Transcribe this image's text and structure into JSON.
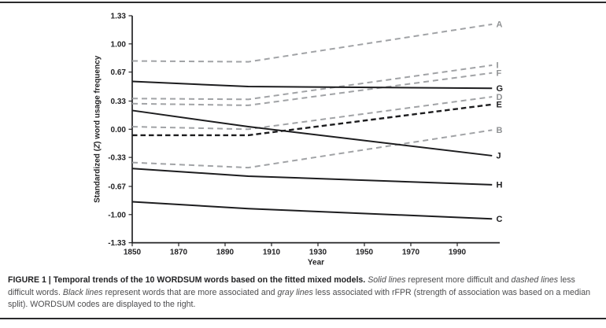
{
  "figure": {
    "caption_segments": [
      {
        "style": "bold",
        "text": "FIGURE 1 | Temporal trends of the 10 WORDSUM words based on the fitted mixed models. "
      },
      {
        "style": "italic",
        "text": "Solid lines"
      },
      {
        "style": "normal",
        "text": " represent more difficult and "
      },
      {
        "style": "italic",
        "text": "dashed lines"
      },
      {
        "style": "normal",
        "text": " less difficult words. "
      },
      {
        "style": "italic",
        "text": "Black lines"
      },
      {
        "style": "normal",
        "text": " represent words that are more associated and "
      },
      {
        "style": "italic",
        "text": "gray lines"
      },
      {
        "style": "normal",
        "text": " less associated with rFPR (strength of association was based on a median split). WORDSUM codes are displayed to the right."
      }
    ]
  },
  "palette": {
    "axis": "#232325",
    "black_line": "#1d1d1f",
    "gray_line": "#a1a3a6",
    "gray_label": "#8f9193",
    "caption_text": "#4c4c4e",
    "caption_bold": "#232325",
    "rule": "#2a2a2c",
    "background": "#ffffff"
  },
  "chart_data": {
    "type": "line",
    "title": "",
    "xlabel": "Year",
    "ylabel": "Standardized (Z) word usage frequency",
    "ylabel_parts": {
      "prefix": "Standardized (",
      "z": "Z",
      "suffix": ") word usage frequency"
    },
    "xlim": [
      1850,
      2005
    ],
    "ylim": [
      -1.33,
      1.33
    ],
    "grid": false,
    "legend_position": "right-of-line-ends",
    "x_years": [
      1850,
      1900,
      2005
    ],
    "xticks": [
      {
        "label": "1850",
        "value": 1850
      },
      {
        "label": "1870",
        "value": 1870
      },
      {
        "label": "1890",
        "value": 1890
      },
      {
        "label": "1910",
        "value": 1910
      },
      {
        "label": "1930",
        "value": 1930
      },
      {
        "label": "1950",
        "value": 1950
      },
      {
        "label": "1970",
        "value": 1970
      },
      {
        "label": "1990",
        "value": 1990
      }
    ],
    "yticks": [
      {
        "label": "1.33",
        "value": 1.33
      },
      {
        "label": "1.00",
        "value": 1.0
      },
      {
        "label": "0.67",
        "value": 0.67
      },
      {
        "label": "0.33",
        "value": 0.33
      },
      {
        "label": "0.00",
        "value": 0.0
      },
      {
        "label": "-0.33",
        "value": -0.33
      },
      {
        "label": "-0.67",
        "value": -0.67
      },
      {
        "label": "-1.00",
        "value": -1.0
      },
      {
        "label": "-1.33",
        "value": -1.33
      }
    ],
    "series": [
      {
        "name": "A",
        "color": "gray",
        "style": "dashed",
        "values": [
          0.8,
          0.79,
          1.23
        ]
      },
      {
        "name": "I",
        "color": "gray",
        "style": "dashed",
        "values": [
          0.36,
          0.35,
          0.75
        ]
      },
      {
        "name": "F",
        "color": "gray",
        "style": "dashed",
        "values": [
          0.3,
          0.28,
          0.66
        ]
      },
      {
        "name": "G",
        "color": "black",
        "style": "solid",
        "values": [
          0.56,
          0.5,
          0.48
        ]
      },
      {
        "name": "D",
        "color": "gray",
        "style": "dashed",
        "values": [
          0.03,
          0.0,
          0.38
        ]
      },
      {
        "name": "E",
        "color": "black",
        "style": "dashed",
        "values": [
          -0.07,
          -0.07,
          0.29
        ]
      },
      {
        "name": "B",
        "color": "gray",
        "style": "dashed",
        "values": [
          -0.39,
          -0.45,
          -0.01
        ]
      },
      {
        "name": "J",
        "color": "black",
        "style": "solid",
        "values": [
          0.22,
          0.03,
          -0.31
        ]
      },
      {
        "name": "H",
        "color": "black",
        "style": "solid",
        "values": [
          -0.46,
          -0.55,
          -0.65
        ]
      },
      {
        "name": "C",
        "color": "black",
        "style": "solid",
        "values": [
          -0.85,
          -0.93,
          -1.05
        ]
      }
    ]
  }
}
